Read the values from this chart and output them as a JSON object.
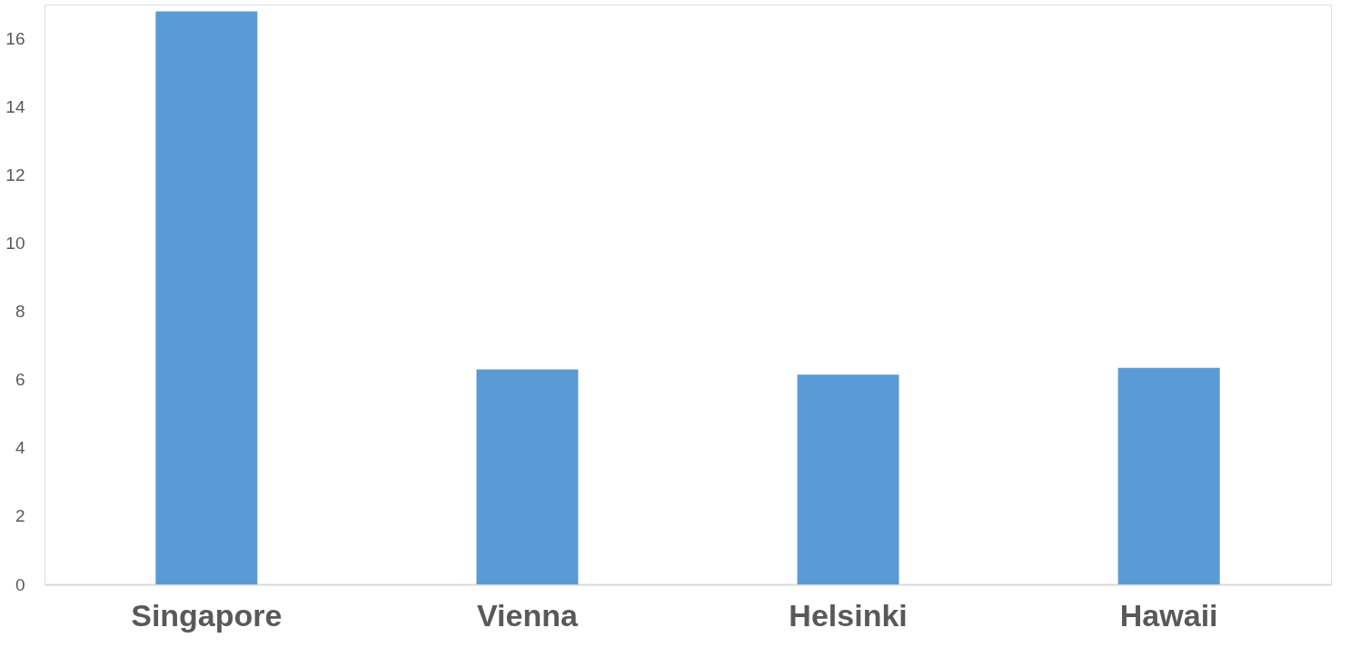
{
  "chart_data": {
    "type": "bar",
    "categories": [
      "Singapore",
      "Vienna",
      "Helsinki",
      "Hawaii"
    ],
    "values": [
      16.8,
      6.3,
      6.15,
      6.35
    ],
    "color": "#5b9bd5",
    "ylim": [
      0,
      17
    ],
    "yticks": [
      0,
      2,
      4,
      6,
      8,
      10,
      12,
      14,
      16
    ],
    "grid": false
  }
}
